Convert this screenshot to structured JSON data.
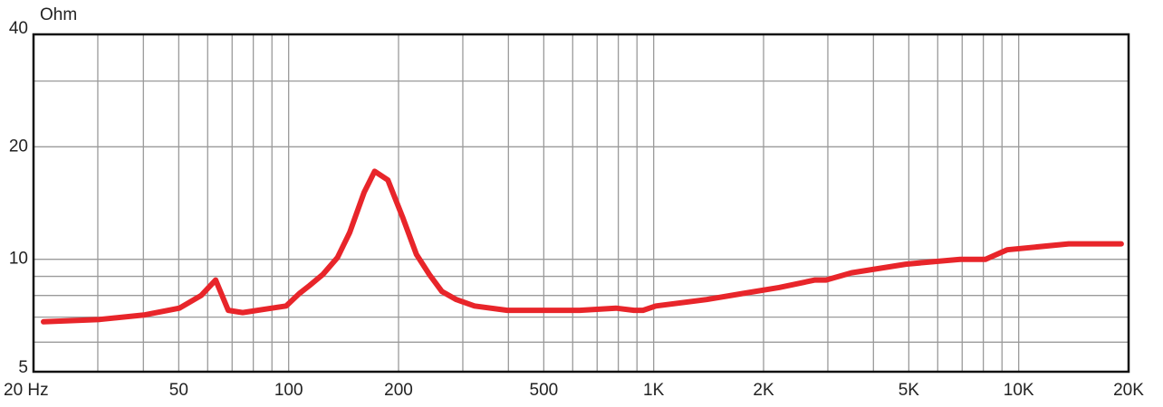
{
  "chart_data": {
    "type": "line",
    "y_label": "Ohm",
    "xscale": "log",
    "yscale": "log",
    "grid": true,
    "xlim": [
      20,
      20000
    ],
    "ylim": [
      5,
      40
    ],
    "xticks": [
      {
        "value": 20,
        "label": "20 Hz"
      },
      50,
      100,
      200,
      500,
      {
        "value": 1000,
        "label": "1K"
      },
      {
        "value": 2000,
        "label": "2K"
      },
      {
        "value": 5000,
        "label": "5K"
      },
      {
        "value": 10000,
        "label": "10K"
      },
      {
        "value": 20000,
        "label": "20K"
      }
    ],
    "xgrid": [
      30,
      40,
      60,
      70,
      80,
      90,
      300,
      400,
      600,
      700,
      800,
      900,
      3000,
      4000,
      6000,
      7000,
      8000,
      9000
    ],
    "yticks": [
      5,
      10,
      20,
      40
    ],
    "ygrid": [
      6,
      7,
      8,
      9,
      30
    ],
    "series": [
      {
        "color": "#e8252a",
        "x": [
          21.3,
          30.4,
          40.4,
          50.2,
          57.6,
          63.1,
          68.3,
          74.8,
          89.9,
          98.4,
          107,
          114,
          124,
          136,
          147,
          161,
          172,
          187,
          205,
          224,
          243,
          263,
          288,
          323,
          397,
          498,
          627,
          788,
          883,
          935,
          1014,
          1396,
          1754,
          2204,
          2767,
          2967,
          3483,
          4906,
          6909,
          8109,
          9292,
          13710,
          19100
        ],
        "values": [
          6.8,
          6.9,
          7.1,
          7.4,
          8.0,
          8.8,
          7.3,
          7.2,
          7.4,
          7.5,
          8.1,
          8.5,
          9.1,
          10.1,
          11.8,
          15.1,
          17.2,
          16.3,
          13.0,
          10.3,
          9.1,
          8.2,
          7.8,
          7.5,
          7.3,
          7.3,
          7.3,
          7.4,
          7.3,
          7.3,
          7.5,
          7.8,
          8.1,
          8.4,
          8.8,
          8.8,
          9.2,
          9.7,
          10.0,
          10.0,
          10.6,
          11.0,
          11.0
        ]
      }
    ]
  }
}
